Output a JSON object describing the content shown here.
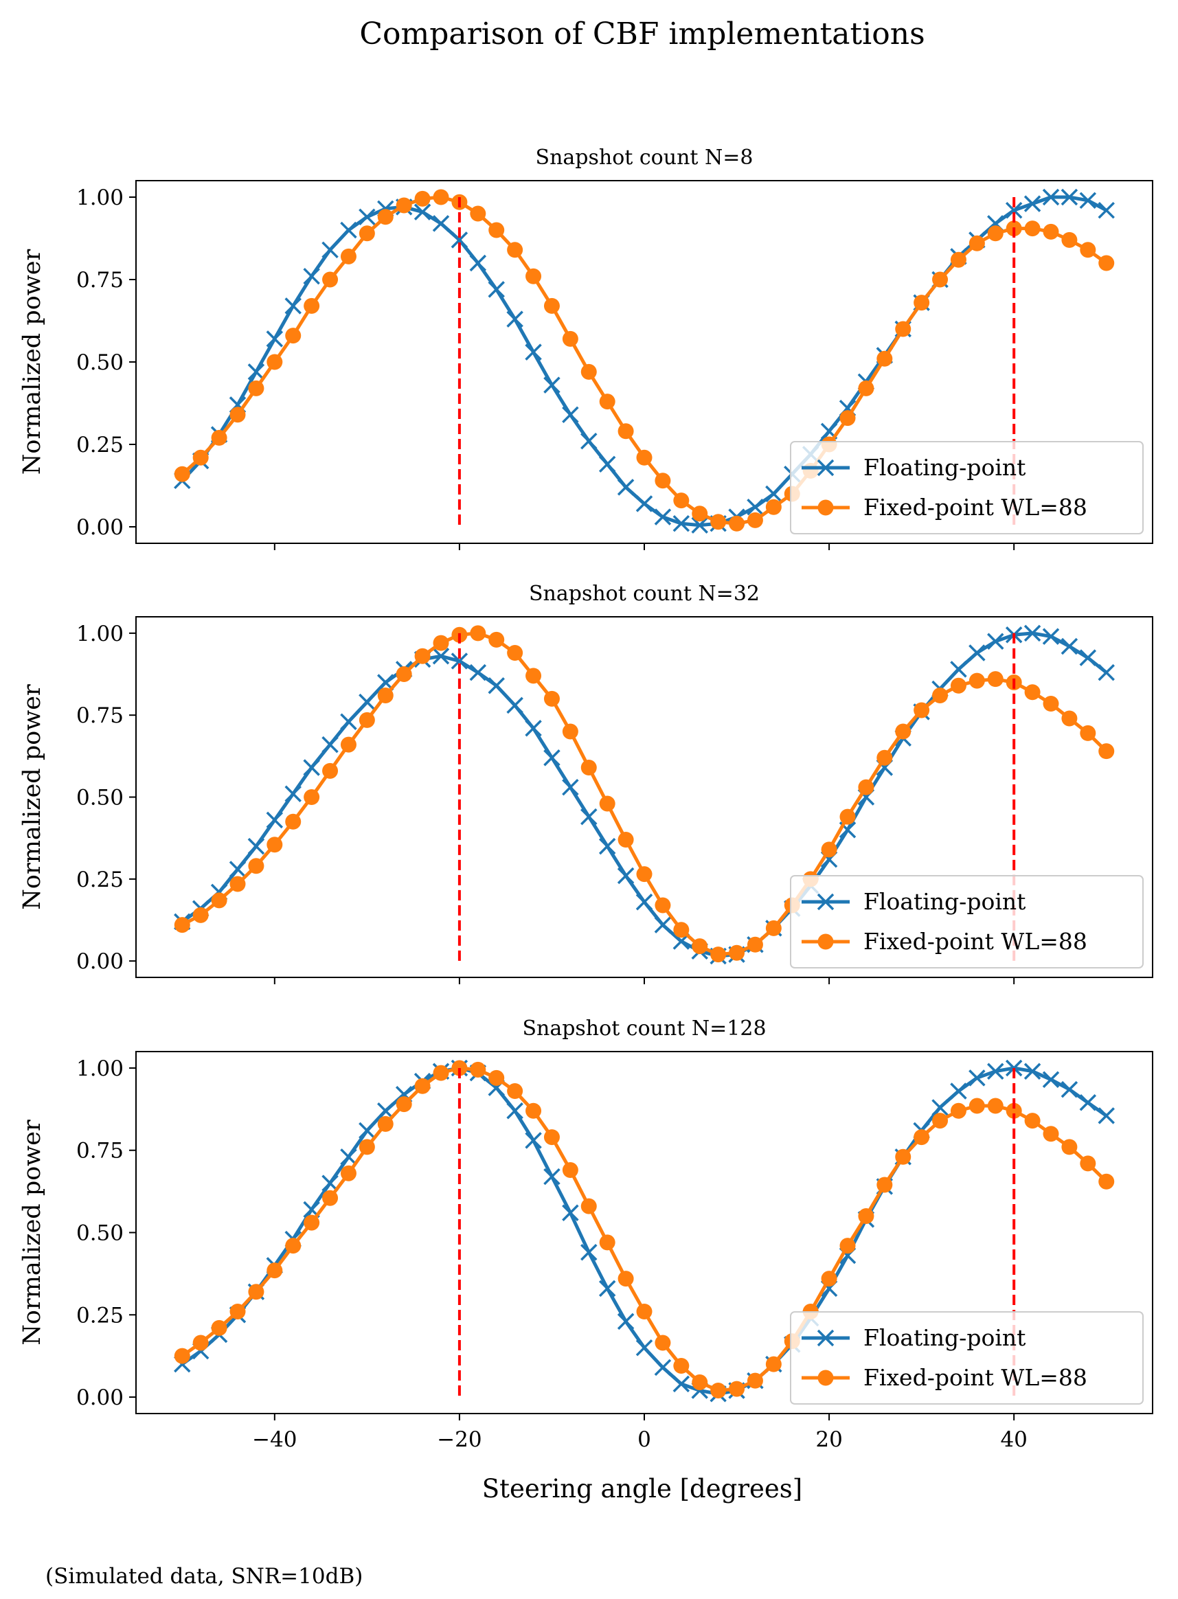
{
  "figure": {
    "title": "Comparison of CBF implementations",
    "xlabel": "Steering angle [degrees]",
    "footnote": "(Simulated data, SNR=10dB)"
  },
  "colors": {
    "floating": "#1f77b4",
    "fixed": "#ff7f0e",
    "reference": "#ff0000",
    "axes": "#000000"
  },
  "legend": {
    "location": "lower-right",
    "labels": [
      "Floating-point",
      "Fixed-point WL=88"
    ]
  },
  "chart_data": [
    {
      "type": "line",
      "title": "Snapshot count N=8",
      "xlabel": "",
      "ylabel": "Normalized power",
      "xlim": [
        -55,
        55
      ],
      "ylim": [
        -0.05,
        1.05
      ],
      "xticks": [
        -40,
        -20,
        0,
        20,
        40
      ],
      "xtick_labels": [],
      "yticks": [
        0.0,
        0.25,
        0.5,
        0.75,
        1.0
      ],
      "ytick_labels": [
        "0.00",
        "0.25",
        "0.50",
        "0.75",
        "1.00"
      ],
      "reference_lines": [
        -20,
        40
      ],
      "series": [
        {
          "name": "Floating-point",
          "marker": "x",
          "x": [
            -50,
            -48,
            -46,
            -44,
            -42,
            -40,
            -38,
            -36,
            -34,
            -32,
            -30,
            -28,
            -26,
            -24,
            -22,
            -20,
            -18,
            -16,
            -14,
            -12,
            -10,
            -8,
            -6,
            -4,
            -2,
            0,
            2,
            4,
            6,
            8,
            10,
            12,
            14,
            16,
            18,
            20,
            22,
            24,
            26,
            28,
            30,
            32,
            34,
            36,
            38,
            40,
            42,
            44,
            46,
            48,
            50
          ],
          "y": [
            0.14,
            0.2,
            0.28,
            0.37,
            0.47,
            0.57,
            0.67,
            0.76,
            0.84,
            0.9,
            0.94,
            0.965,
            0.97,
            0.955,
            0.92,
            0.87,
            0.8,
            0.72,
            0.63,
            0.53,
            0.43,
            0.34,
            0.26,
            0.19,
            0.12,
            0.07,
            0.03,
            0.01,
            0.005,
            0.01,
            0.03,
            0.06,
            0.1,
            0.16,
            0.22,
            0.29,
            0.36,
            0.44,
            0.52,
            0.6,
            0.68,
            0.75,
            0.82,
            0.87,
            0.92,
            0.96,
            0.98,
            1.0,
            1.0,
            0.99,
            0.96
          ]
        },
        {
          "name": "Fixed-point WL=88",
          "marker": "o",
          "x": [
            -50,
            -48,
            -46,
            -44,
            -42,
            -40,
            -38,
            -36,
            -34,
            -32,
            -30,
            -28,
            -26,
            -24,
            -22,
            -20,
            -18,
            -16,
            -14,
            -12,
            -10,
            -8,
            -6,
            -4,
            -2,
            0,
            2,
            4,
            6,
            8,
            10,
            12,
            14,
            16,
            18,
            20,
            22,
            24,
            26,
            28,
            30,
            32,
            34,
            36,
            38,
            40,
            42,
            44,
            46,
            48,
            50
          ],
          "y": [
            0.16,
            0.21,
            0.27,
            0.34,
            0.42,
            0.5,
            0.58,
            0.67,
            0.75,
            0.82,
            0.89,
            0.94,
            0.975,
            0.995,
            1.0,
            0.985,
            0.95,
            0.9,
            0.84,
            0.76,
            0.67,
            0.57,
            0.47,
            0.38,
            0.29,
            0.21,
            0.14,
            0.08,
            0.04,
            0.015,
            0.01,
            0.02,
            0.06,
            0.1,
            0.17,
            0.25,
            0.33,
            0.42,
            0.51,
            0.6,
            0.68,
            0.75,
            0.81,
            0.86,
            0.89,
            0.905,
            0.905,
            0.895,
            0.87,
            0.84,
            0.8
          ]
        }
      ]
    },
    {
      "type": "line",
      "title": "Snapshot count N=32",
      "xlabel": "",
      "ylabel": "Normalized power",
      "xlim": [
        -55,
        55
      ],
      "ylim": [
        -0.05,
        1.05
      ],
      "xticks": [
        -40,
        -20,
        0,
        20,
        40
      ],
      "xtick_labels": [],
      "yticks": [
        0.0,
        0.25,
        0.5,
        0.75,
        1.0
      ],
      "ytick_labels": [
        "0.00",
        "0.25",
        "0.50",
        "0.75",
        "1.00"
      ],
      "reference_lines": [
        -20,
        40
      ],
      "series": [
        {
          "name": "Floating-point",
          "marker": "x",
          "x": [
            -50,
            -48,
            -46,
            -44,
            -42,
            -40,
            -38,
            -36,
            -34,
            -32,
            -30,
            -28,
            -26,
            -24,
            -22,
            -20,
            -18,
            -16,
            -14,
            -12,
            -10,
            -8,
            -6,
            -4,
            -2,
            0,
            2,
            4,
            6,
            8,
            10,
            12,
            14,
            16,
            18,
            20,
            22,
            24,
            26,
            28,
            30,
            32,
            34,
            36,
            38,
            40,
            42,
            44,
            46,
            48,
            50
          ],
          "y": [
            0.12,
            0.16,
            0.21,
            0.28,
            0.35,
            0.43,
            0.51,
            0.59,
            0.66,
            0.73,
            0.79,
            0.85,
            0.89,
            0.92,
            0.93,
            0.915,
            0.88,
            0.84,
            0.78,
            0.71,
            0.62,
            0.53,
            0.44,
            0.35,
            0.26,
            0.18,
            0.11,
            0.06,
            0.03,
            0.015,
            0.02,
            0.05,
            0.1,
            0.16,
            0.23,
            0.31,
            0.4,
            0.5,
            0.59,
            0.68,
            0.76,
            0.83,
            0.89,
            0.94,
            0.975,
            0.995,
            1.0,
            0.99,
            0.96,
            0.925,
            0.88
          ]
        },
        {
          "name": "Fixed-point WL=88",
          "marker": "o",
          "x": [
            -50,
            -48,
            -46,
            -44,
            -42,
            -40,
            -38,
            -36,
            -34,
            -32,
            -30,
            -28,
            -26,
            -24,
            -22,
            -20,
            -18,
            -16,
            -14,
            -12,
            -10,
            -8,
            -6,
            -4,
            -2,
            0,
            2,
            4,
            6,
            8,
            10,
            12,
            14,
            16,
            18,
            20,
            22,
            24,
            26,
            28,
            30,
            32,
            34,
            36,
            38,
            40,
            42,
            44,
            46,
            48,
            50
          ],
          "y": [
            0.11,
            0.14,
            0.185,
            0.235,
            0.29,
            0.355,
            0.425,
            0.5,
            0.58,
            0.66,
            0.735,
            0.81,
            0.875,
            0.93,
            0.97,
            0.995,
            1.0,
            0.98,
            0.94,
            0.87,
            0.8,
            0.7,
            0.59,
            0.48,
            0.37,
            0.265,
            0.17,
            0.095,
            0.045,
            0.02,
            0.025,
            0.05,
            0.1,
            0.17,
            0.25,
            0.34,
            0.44,
            0.53,
            0.62,
            0.7,
            0.765,
            0.81,
            0.84,
            0.855,
            0.86,
            0.85,
            0.82,
            0.785,
            0.74,
            0.695,
            0.64
          ]
        }
      ]
    },
    {
      "type": "line",
      "title": "Snapshot count N=128",
      "xlabel": "Steering angle [degrees]",
      "ylabel": "Normalized power",
      "xlim": [
        -55,
        55
      ],
      "ylim": [
        -0.05,
        1.05
      ],
      "xticks": [
        -40,
        -20,
        0,
        20,
        40
      ],
      "xtick_labels": [
        "−40",
        "−20",
        "0",
        "20",
        "40"
      ],
      "yticks": [
        0.0,
        0.25,
        0.5,
        0.75,
        1.0
      ],
      "ytick_labels": [
        "0.00",
        "0.25",
        "0.50",
        "0.75",
        "1.00"
      ],
      "reference_lines": [
        -20,
        40
      ],
      "series": [
        {
          "name": "Floating-point",
          "marker": "x",
          "x": [
            -50,
            -48,
            -46,
            -44,
            -42,
            -40,
            -38,
            -36,
            -34,
            -32,
            -30,
            -28,
            -26,
            -24,
            -22,
            -20,
            -18,
            -16,
            -14,
            -12,
            -10,
            -8,
            -6,
            -4,
            -2,
            0,
            2,
            4,
            6,
            8,
            10,
            12,
            14,
            16,
            18,
            20,
            22,
            24,
            26,
            28,
            30,
            32,
            34,
            36,
            38,
            40,
            42,
            44,
            46,
            48,
            50
          ],
          "y": [
            0.1,
            0.14,
            0.19,
            0.25,
            0.32,
            0.4,
            0.48,
            0.57,
            0.65,
            0.73,
            0.81,
            0.87,
            0.92,
            0.96,
            0.99,
            1.0,
            0.985,
            0.94,
            0.87,
            0.78,
            0.67,
            0.56,
            0.44,
            0.33,
            0.23,
            0.15,
            0.09,
            0.04,
            0.02,
            0.01,
            0.02,
            0.05,
            0.1,
            0.16,
            0.24,
            0.33,
            0.43,
            0.54,
            0.64,
            0.73,
            0.81,
            0.88,
            0.93,
            0.97,
            0.99,
            1.0,
            0.99,
            0.965,
            0.935,
            0.895,
            0.855
          ]
        },
        {
          "name": "Fixed-point WL=88",
          "marker": "o",
          "x": [
            -50,
            -48,
            -46,
            -44,
            -42,
            -40,
            -38,
            -36,
            -34,
            -32,
            -30,
            -28,
            -26,
            -24,
            -22,
            -20,
            -18,
            -16,
            -14,
            -12,
            -10,
            -8,
            -6,
            -4,
            -2,
            0,
            2,
            4,
            6,
            8,
            10,
            12,
            14,
            16,
            18,
            20,
            22,
            24,
            26,
            28,
            30,
            32,
            34,
            36,
            38,
            40,
            42,
            44,
            46,
            48,
            50
          ],
          "y": [
            0.125,
            0.165,
            0.21,
            0.26,
            0.32,
            0.385,
            0.46,
            0.53,
            0.605,
            0.68,
            0.76,
            0.83,
            0.89,
            0.945,
            0.985,
            1.0,
            0.995,
            0.97,
            0.93,
            0.87,
            0.79,
            0.69,
            0.58,
            0.47,
            0.36,
            0.26,
            0.165,
            0.095,
            0.045,
            0.02,
            0.025,
            0.05,
            0.1,
            0.17,
            0.26,
            0.36,
            0.46,
            0.55,
            0.645,
            0.73,
            0.79,
            0.84,
            0.87,
            0.885,
            0.885,
            0.87,
            0.84,
            0.8,
            0.76,
            0.71,
            0.655
          ]
        }
      ]
    }
  ]
}
